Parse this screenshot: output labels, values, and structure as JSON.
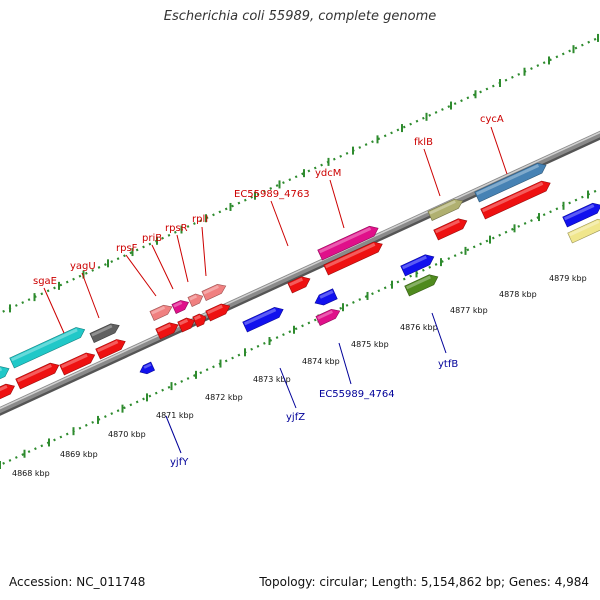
{
  "title": "Escherichia coli 55989, complete genome",
  "footer": {
    "accession": "Accession: NC_011748",
    "topology": "Topology: circular; Length: 5,154,862 bp; Genes: 4,984"
  },
  "colors": {
    "upper_label": "#cc0000",
    "lower_label": "#000099",
    "backbone": "#8a8a8a",
    "tick": "#2e8b2e"
  },
  "kbp_labels": [
    "4868 kbp",
    "4869 kbp",
    "4870 kbp",
    "4871 kbp",
    "4872 kbp",
    "4873 kbp",
    "4874 kbp",
    "4875 kbp",
    "4876 kbp",
    "4877 kbp",
    "4878 kbp",
    "4879 kbp"
  ],
  "upper_gene_labels": [
    "sgaE",
    "yagU",
    "rpsF",
    "priB",
    "rpsR",
    "rplI",
    "EC55989_4763",
    "ydcM",
    "fklB",
    "cycA"
  ],
  "lower_gene_labels": [
    "yjfY",
    "yjfZ",
    "EC55989_4764",
    "ytfB"
  ]
}
